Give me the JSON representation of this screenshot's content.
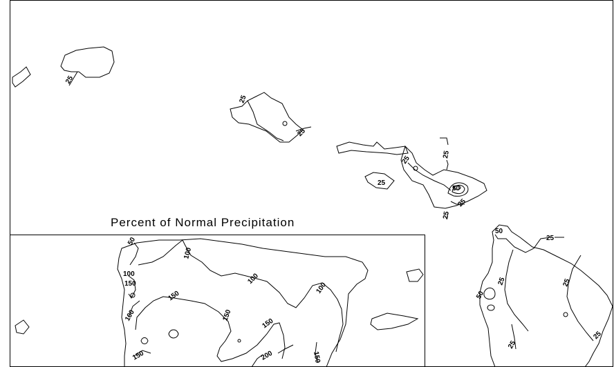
{
  "title": "Percent of Normal Precipitation",
  "contour_labels": {
    "kauai": "25",
    "oahu_left": "25",
    "oahu_right": "25",
    "molokai_n": "25",
    "maui_w": "25",
    "lanai": "25",
    "kahoolawe": "25",
    "maui_peak": "50",
    "maui_s": "25",
    "hawaii_nw": "50",
    "hawaii_ne": "25",
    "hawaii_c1": "25",
    "hawaii_c2": "25",
    "hawaii_w": "50",
    "hawaii_sw": "25",
    "hawaii_se": "25",
    "pr_nw": "50",
    "pr_n1": "100",
    "pr_n2": "100",
    "pr_w100": "100",
    "pr_w150": "150",
    "pr_sw100": "100",
    "pr_c150a": "150",
    "pr_c150b": "150",
    "pr_c150c": "150",
    "pr_c100": "100",
    "pr_ne100": "100",
    "pr_s150": "150",
    "pr_s200": "200",
    "pr_se150": "150"
  }
}
